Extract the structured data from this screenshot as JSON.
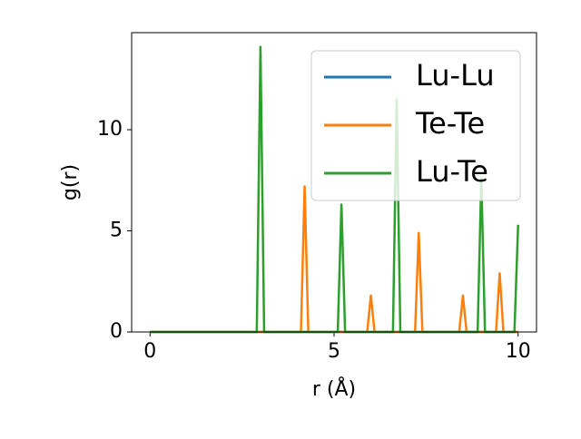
{
  "chart_data": {
    "type": "line",
    "xlabel": "r (Å)",
    "ylabel": "g(r)",
    "x": [
      0,
      0.1,
      0.2,
      0.3,
      0.4,
      0.5,
      0.6,
      0.7,
      0.8,
      0.9,
      1,
      1.1,
      1.2,
      1.3,
      1.4,
      1.5,
      1.6,
      1.7,
      1.8,
      1.9,
      2,
      2.1,
      2.2,
      2.3,
      2.4,
      2.5,
      2.6,
      2.7,
      2.8,
      2.9,
      3,
      3.1,
      3.2,
      3.3,
      3.4,
      3.5,
      3.6,
      3.7,
      3.8,
      3.9,
      4,
      4.1,
      4.2,
      4.3,
      4.4,
      4.5,
      4.6,
      4.7,
      4.8,
      4.9,
      5,
      5.1,
      5.2,
      5.3,
      5.4,
      5.5,
      5.6,
      5.7,
      5.8,
      5.9,
      6,
      6.1,
      6.2,
      6.3,
      6.4,
      6.5,
      6.6,
      6.7,
      6.8,
      6.9,
      7,
      7.1,
      7.2,
      7.3,
      7.4,
      7.5,
      7.6,
      7.7,
      7.8,
      7.9,
      8,
      8.1,
      8.2,
      8.3,
      8.4,
      8.5,
      8.6,
      8.7,
      8.8,
      8.9,
      9,
      9.1,
      9.2,
      9.3,
      9.4,
      9.5,
      9.6,
      9.7,
      9.8,
      9.9,
      10
    ],
    "series": [
      {
        "name": "Lu-Lu",
        "color": "#1f77b4",
        "values": [
          0,
          0,
          0,
          0,
          0,
          0,
          0,
          0,
          0,
          0,
          0,
          0,
          0,
          0,
          0,
          0,
          0,
          0,
          0,
          0,
          0,
          0,
          0,
          0,
          0,
          0,
          0,
          0,
          0,
          0,
          0,
          0,
          0,
          0,
          0,
          0,
          0,
          0,
          0,
          0,
          0,
          0,
          0,
          0,
          0,
          0,
          0,
          0,
          0,
          0,
          0,
          0,
          0,
          0,
          0,
          0,
          0,
          0,
          0,
          0,
          0,
          0,
          0,
          0,
          0,
          0,
          0,
          0,
          0,
          0,
          0,
          0,
          0,
          0,
          0,
          0,
          0,
          0,
          0,
          0,
          0,
          0,
          0,
          0,
          0,
          0,
          0,
          0,
          0,
          0,
          0,
          0,
          0,
          0,
          0,
          0,
          0,
          0,
          0,
          0,
          0
        ]
      },
      {
        "name": "Te-Te",
        "color": "#ff7f0e",
        "values": [
          0,
          0,
          0,
          0,
          0,
          0,
          0,
          0,
          0,
          0,
          0,
          0,
          0,
          0,
          0,
          0,
          0,
          0,
          0,
          0,
          0,
          0,
          0,
          0,
          0,
          0,
          0,
          0,
          0,
          0,
          0,
          0,
          0,
          0,
          0,
          0,
          0,
          0,
          0,
          0,
          0,
          0,
          7.2,
          0,
          0,
          0,
          0,
          0,
          0,
          0,
          0,
          0,
          0,
          0,
          0,
          0,
          0,
          0,
          0,
          0,
          1.8,
          0,
          0,
          0,
          0,
          0,
          0,
          0,
          0,
          0,
          0,
          0,
          0,
          4.9,
          0,
          0,
          0,
          0,
          0,
          0,
          0,
          0,
          0,
          0,
          0,
          1.8,
          0,
          0,
          0,
          0,
          0,
          0,
          0,
          0,
          0,
          2.9,
          0,
          0,
          0,
          0,
          0
        ]
      },
      {
        "name": "Lu-Te",
        "color": "#2ca02c",
        "values": [
          0,
          0,
          0,
          0,
          0,
          0,
          0,
          0,
          0,
          0,
          0,
          0,
          0,
          0,
          0,
          0,
          0,
          0,
          0,
          0,
          0,
          0,
          0,
          0,
          0,
          0,
          0,
          0,
          0,
          0,
          14.1,
          0,
          0,
          0,
          0,
          0,
          0,
          0,
          0,
          0,
          0,
          0,
          0,
          0,
          0,
          0,
          0,
          0,
          0,
          0,
          0,
          0,
          6.3,
          0,
          0,
          0,
          0,
          0,
          0,
          0,
          0,
          0,
          0,
          0,
          0,
          0,
          0,
          11.5,
          0,
          0,
          0,
          0,
          0,
          0,
          0,
          0,
          0,
          0,
          0,
          0,
          0,
          0,
          0,
          0,
          0,
          0,
          0,
          0,
          0,
          0,
          7.6,
          0,
          0,
          0,
          0,
          0,
          0,
          0,
          0,
          0,
          5.3
        ]
      }
    ],
    "xlim": [
      -0.5,
      10.5
    ],
    "ylim": [
      0,
      14.8
    ],
    "xticks": [
      0,
      5,
      10
    ],
    "yticks": [
      0,
      5,
      10
    ],
    "legend": "upper right"
  }
}
